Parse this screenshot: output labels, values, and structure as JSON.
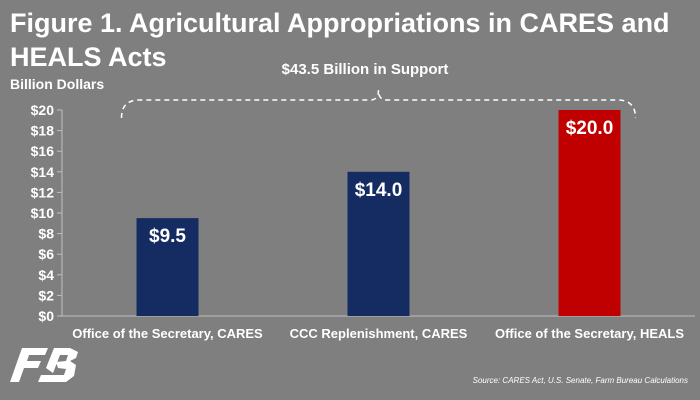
{
  "title": "Figure 1. Agricultural Appropriations in CARES and HEALS Acts",
  "source": "Source: CARES Act, U.S. Senate, Farm Bureau Calculations",
  "logo_icon": "farm-bureau-logo-icon",
  "chart_data": {
    "type": "bar",
    "ylabel": "Billion Dollars",
    "xlabel": "",
    "ylim": [
      0,
      20
    ],
    "yticks": [
      "$0",
      "$2",
      "$4",
      "$6",
      "$8",
      "$10",
      "$12",
      "$14",
      "$16",
      "$18",
      "$20"
    ],
    "categories": [
      "Office of the Secretary, CARES",
      "CCC Replenishment, CARES",
      "Office of the Secretary, HEALS"
    ],
    "values": [
      9.5,
      14.0,
      20.0
    ],
    "data_labels": [
      "$9.5",
      "$14.0",
      "$20.0"
    ],
    "colors": [
      "#142c61",
      "#142c61",
      "#c00000"
    ],
    "annotation": "$43.5 Billion in Support",
    "grid": false,
    "legend": "none"
  }
}
